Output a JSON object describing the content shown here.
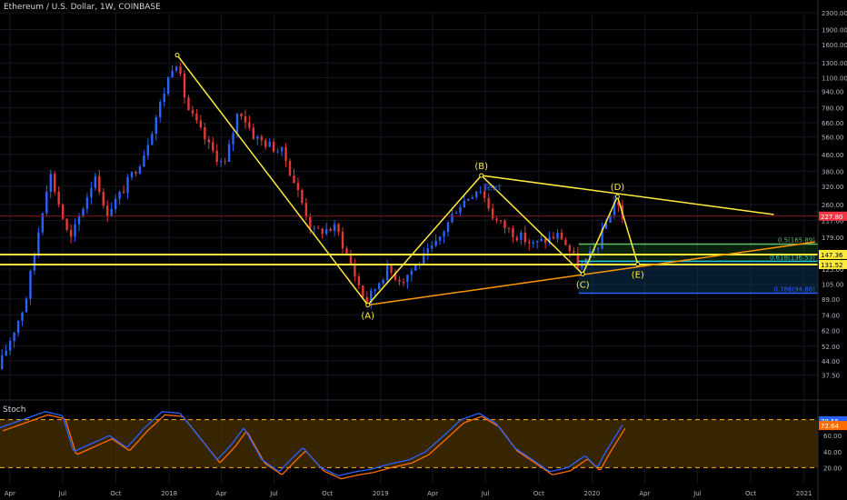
{
  "header": {
    "title": "Ethereum / U.S. Dollar, 1W, COINBASE"
  },
  "chart_data": {
    "type": "candlestick",
    "title": "Ethereum / U.S. Dollar, 1W, COINBASE",
    "y_scale": "log",
    "ylim": [
      30,
      2300
    ],
    "xlim": [
      "2017-03-15",
      "2021-01-25"
    ],
    "y_ticks": [
      2300,
      1900,
      1600,
      1300,
      1100,
      940,
      780,
      660,
      560,
      460,
      380,
      320,
      260,
      217,
      179,
      147,
      125,
      105,
      89,
      74,
      62,
      52,
      44,
      37.5
    ],
    "y_tick_labels": [
      "2300.00",
      "1900.00",
      "1600.00",
      "1300.00",
      "1100.00",
      "940.00",
      "780.00",
      "660.00",
      "560.00",
      "460.00",
      "380.00",
      "320.00",
      "260.00",
      "217.00",
      "179.00",
      "147.00",
      "125.00",
      "105.00",
      "89.00",
      "74.00",
      "62.00",
      "52.00",
      "44.00",
      "37.50"
    ],
    "x_ticks": [
      {
        "label": "Apr",
        "date": "2017-04-01"
      },
      {
        "label": "Jul",
        "date": "2017-07-01"
      },
      {
        "label": "Oct",
        "date": "2017-10-01"
      },
      {
        "label": "2018",
        "date": "2018-01-01"
      },
      {
        "label": "Apr",
        "date": "2018-04-01"
      },
      {
        "label": "Jul",
        "date": "2018-07-01"
      },
      {
        "label": "Oct",
        "date": "2018-10-01"
      },
      {
        "label": "2019",
        "date": "2019-01-01"
      },
      {
        "label": "Apr",
        "date": "2019-04-01"
      },
      {
        "label": "Jul",
        "date": "2019-07-01"
      },
      {
        "label": "Oct",
        "date": "2019-10-01"
      },
      {
        "label": "2020",
        "date": "2020-01-01"
      },
      {
        "label": "Apr",
        "date": "2020-04-01"
      },
      {
        "label": "Jul",
        "date": "2020-07-01"
      },
      {
        "label": "Oct",
        "date": "2020-10-01"
      },
      {
        "label": "2021",
        "date": "2021-01-01"
      }
    ],
    "price_anchors": [
      [
        "2017-03-15",
        40
      ],
      [
        "2017-05-01",
        85
      ],
      [
        "2017-06-12",
        380
      ],
      [
        "2017-07-17",
        170
      ],
      [
        "2017-09-01",
        380
      ],
      [
        "2017-09-15",
        230
      ],
      [
        "2017-10-15",
        300
      ],
      [
        "2017-11-20",
        450
      ],
      [
        "2017-12-18",
        780
      ],
      [
        "2018-01-15",
        1400
      ],
      [
        "2018-02-05",
        780
      ],
      [
        "2018-03-15",
        500
      ],
      [
        "2018-04-10",
        400
      ],
      [
        "2018-05-05",
        780
      ],
      [
        "2018-06-01",
        560
      ],
      [
        "2018-07-20",
        470
      ],
      [
        "2018-08-15",
        300
      ],
      [
        "2018-09-10",
        190
      ],
      [
        "2018-10-20",
        200
      ],
      [
        "2018-12-10",
        85
      ],
      [
        "2019-01-15",
        125
      ],
      [
        "2019-02-10",
        110
      ],
      [
        "2019-03-15",
        138
      ],
      [
        "2019-04-10",
        165
      ],
      [
        "2019-05-15",
        250
      ],
      [
        "2019-06-24",
        320
      ],
      [
        "2019-07-20",
        220
      ],
      [
        "2019-08-20",
        190
      ],
      [
        "2019-09-25",
        165
      ],
      [
        "2019-11-10",
        185
      ],
      [
        "2019-12-16",
        125
      ],
      [
        "2020-01-15",
        165
      ],
      [
        "2020-02-14",
        280
      ],
      [
        "2020-02-24",
        228
      ]
    ],
    "price_labels": [
      {
        "value": 227.8,
        "label": "227.80",
        "color": "#f23645"
      },
      {
        "value": 147.36,
        "label": "147.36",
        "color": "#ffeb3b"
      },
      {
        "value": 131.52,
        "label": "131.52",
        "color": "#ffeb3b"
      }
    ],
    "horizontal_lines": [
      {
        "value": 227.8,
        "color": "#8c1a22"
      },
      {
        "value": 147.36,
        "color": "#ffeb3b"
      },
      {
        "value": 131.52,
        "color": "#ffeb3b"
      }
    ],
    "fib_levels": [
      {
        "label": "0.5(165.89)",
        "value": 165.89,
        "color": "#66bb6a"
      },
      {
        "label": "0.618(136.53)",
        "value": 136.53,
        "color": "#26c6da"
      },
      {
        "label": "0.786(94.88)",
        "value": 94.88,
        "color": "#2962ff"
      }
    ],
    "fib_start": "2019-12-09",
    "fib_end": "2021-01-25",
    "pattern_points": [
      {
        "label": "(A)",
        "date": "2018-12-10",
        "value": 83,
        "text_pos": "below"
      },
      {
        "label": "(B)",
        "date": "2019-06-24",
        "value": 362,
        "text_pos": "above"
      },
      {
        "label": "(C)",
        "date": "2019-12-16",
        "value": 118,
        "text_pos": "below"
      },
      {
        "label": "(D)",
        "date": "2020-02-14",
        "value": 285,
        "text_pos": "above"
      },
      {
        "label": "(E)",
        "date": "2020-03-20",
        "value": 132,
        "text_pos": "below"
      }
    ],
    "peak_point": {
      "date": "2018-01-15",
      "value": 1420
    },
    "trendlines": [
      {
        "from": {
          "date": "2019-06-24",
          "value": 362
        },
        "to": {
          "date": "2020-11-10",
          "value": 232
        },
        "color": "#ffeb3b"
      },
      {
        "from": {
          "date": "2018-12-10",
          "value": 83
        },
        "to": {
          "date": "2021-01-20",
          "value": 170
        },
        "color": "#ff9800"
      }
    ],
    "text_annotation": {
      "text": "Text",
      "date": "2019-06-27",
      "value": 305,
      "color": "#2962ff"
    },
    "oscillator": {
      "name": "Stoch",
      "ylim": [
        0,
        100
      ],
      "y_ticks": [
        60,
        40,
        20
      ],
      "upper_band": 80,
      "lower_band": 20,
      "k_value": 78.55,
      "d_value": 72.64,
      "k_label": "78.55",
      "d_label": "72.64",
      "k_color": "#2962ff",
      "d_color": "#ff6d00",
      "anchors": [
        [
          "2017-03-15",
          70
        ],
        [
          "2017-05-01",
          82
        ],
        [
          "2017-06-01",
          90
        ],
        [
          "2017-07-01",
          85
        ],
        [
          "2017-07-20",
          40
        ],
        [
          "2017-08-20",
          50
        ],
        [
          "2017-09-20",
          60
        ],
        [
          "2017-10-20",
          45
        ],
        [
          "2017-11-20",
          70
        ],
        [
          "2017-12-20",
          90
        ],
        [
          "2018-01-20",
          88
        ],
        [
          "2018-02-20",
          60
        ],
        [
          "2018-03-25",
          30
        ],
        [
          "2018-04-20",
          50
        ],
        [
          "2018-05-10",
          70
        ],
        [
          "2018-06-10",
          30
        ],
        [
          "2018-07-10",
          15
        ],
        [
          "2018-07-30",
          30
        ],
        [
          "2018-08-20",
          45
        ],
        [
          "2018-09-20",
          20
        ],
        [
          "2018-10-20",
          10
        ],
        [
          "2018-11-20",
          15
        ],
        [
          "2018-12-15",
          18
        ],
        [
          "2019-01-20",
          25
        ],
        [
          "2019-02-20",
          30
        ],
        [
          "2019-03-20",
          40
        ],
        [
          "2019-04-20",
          60
        ],
        [
          "2019-05-20",
          80
        ],
        [
          "2019-06-20",
          88
        ],
        [
          "2019-07-20",
          75
        ],
        [
          "2019-08-20",
          45
        ],
        [
          "2019-09-20",
          30
        ],
        [
          "2019-10-20",
          15
        ],
        [
          "2019-11-20",
          20
        ],
        [
          "2019-12-20",
          35
        ],
        [
          "2020-01-10",
          20
        ],
        [
          "2020-01-25",
          40
        ],
        [
          "2020-02-24",
          75
        ]
      ]
    }
  }
}
